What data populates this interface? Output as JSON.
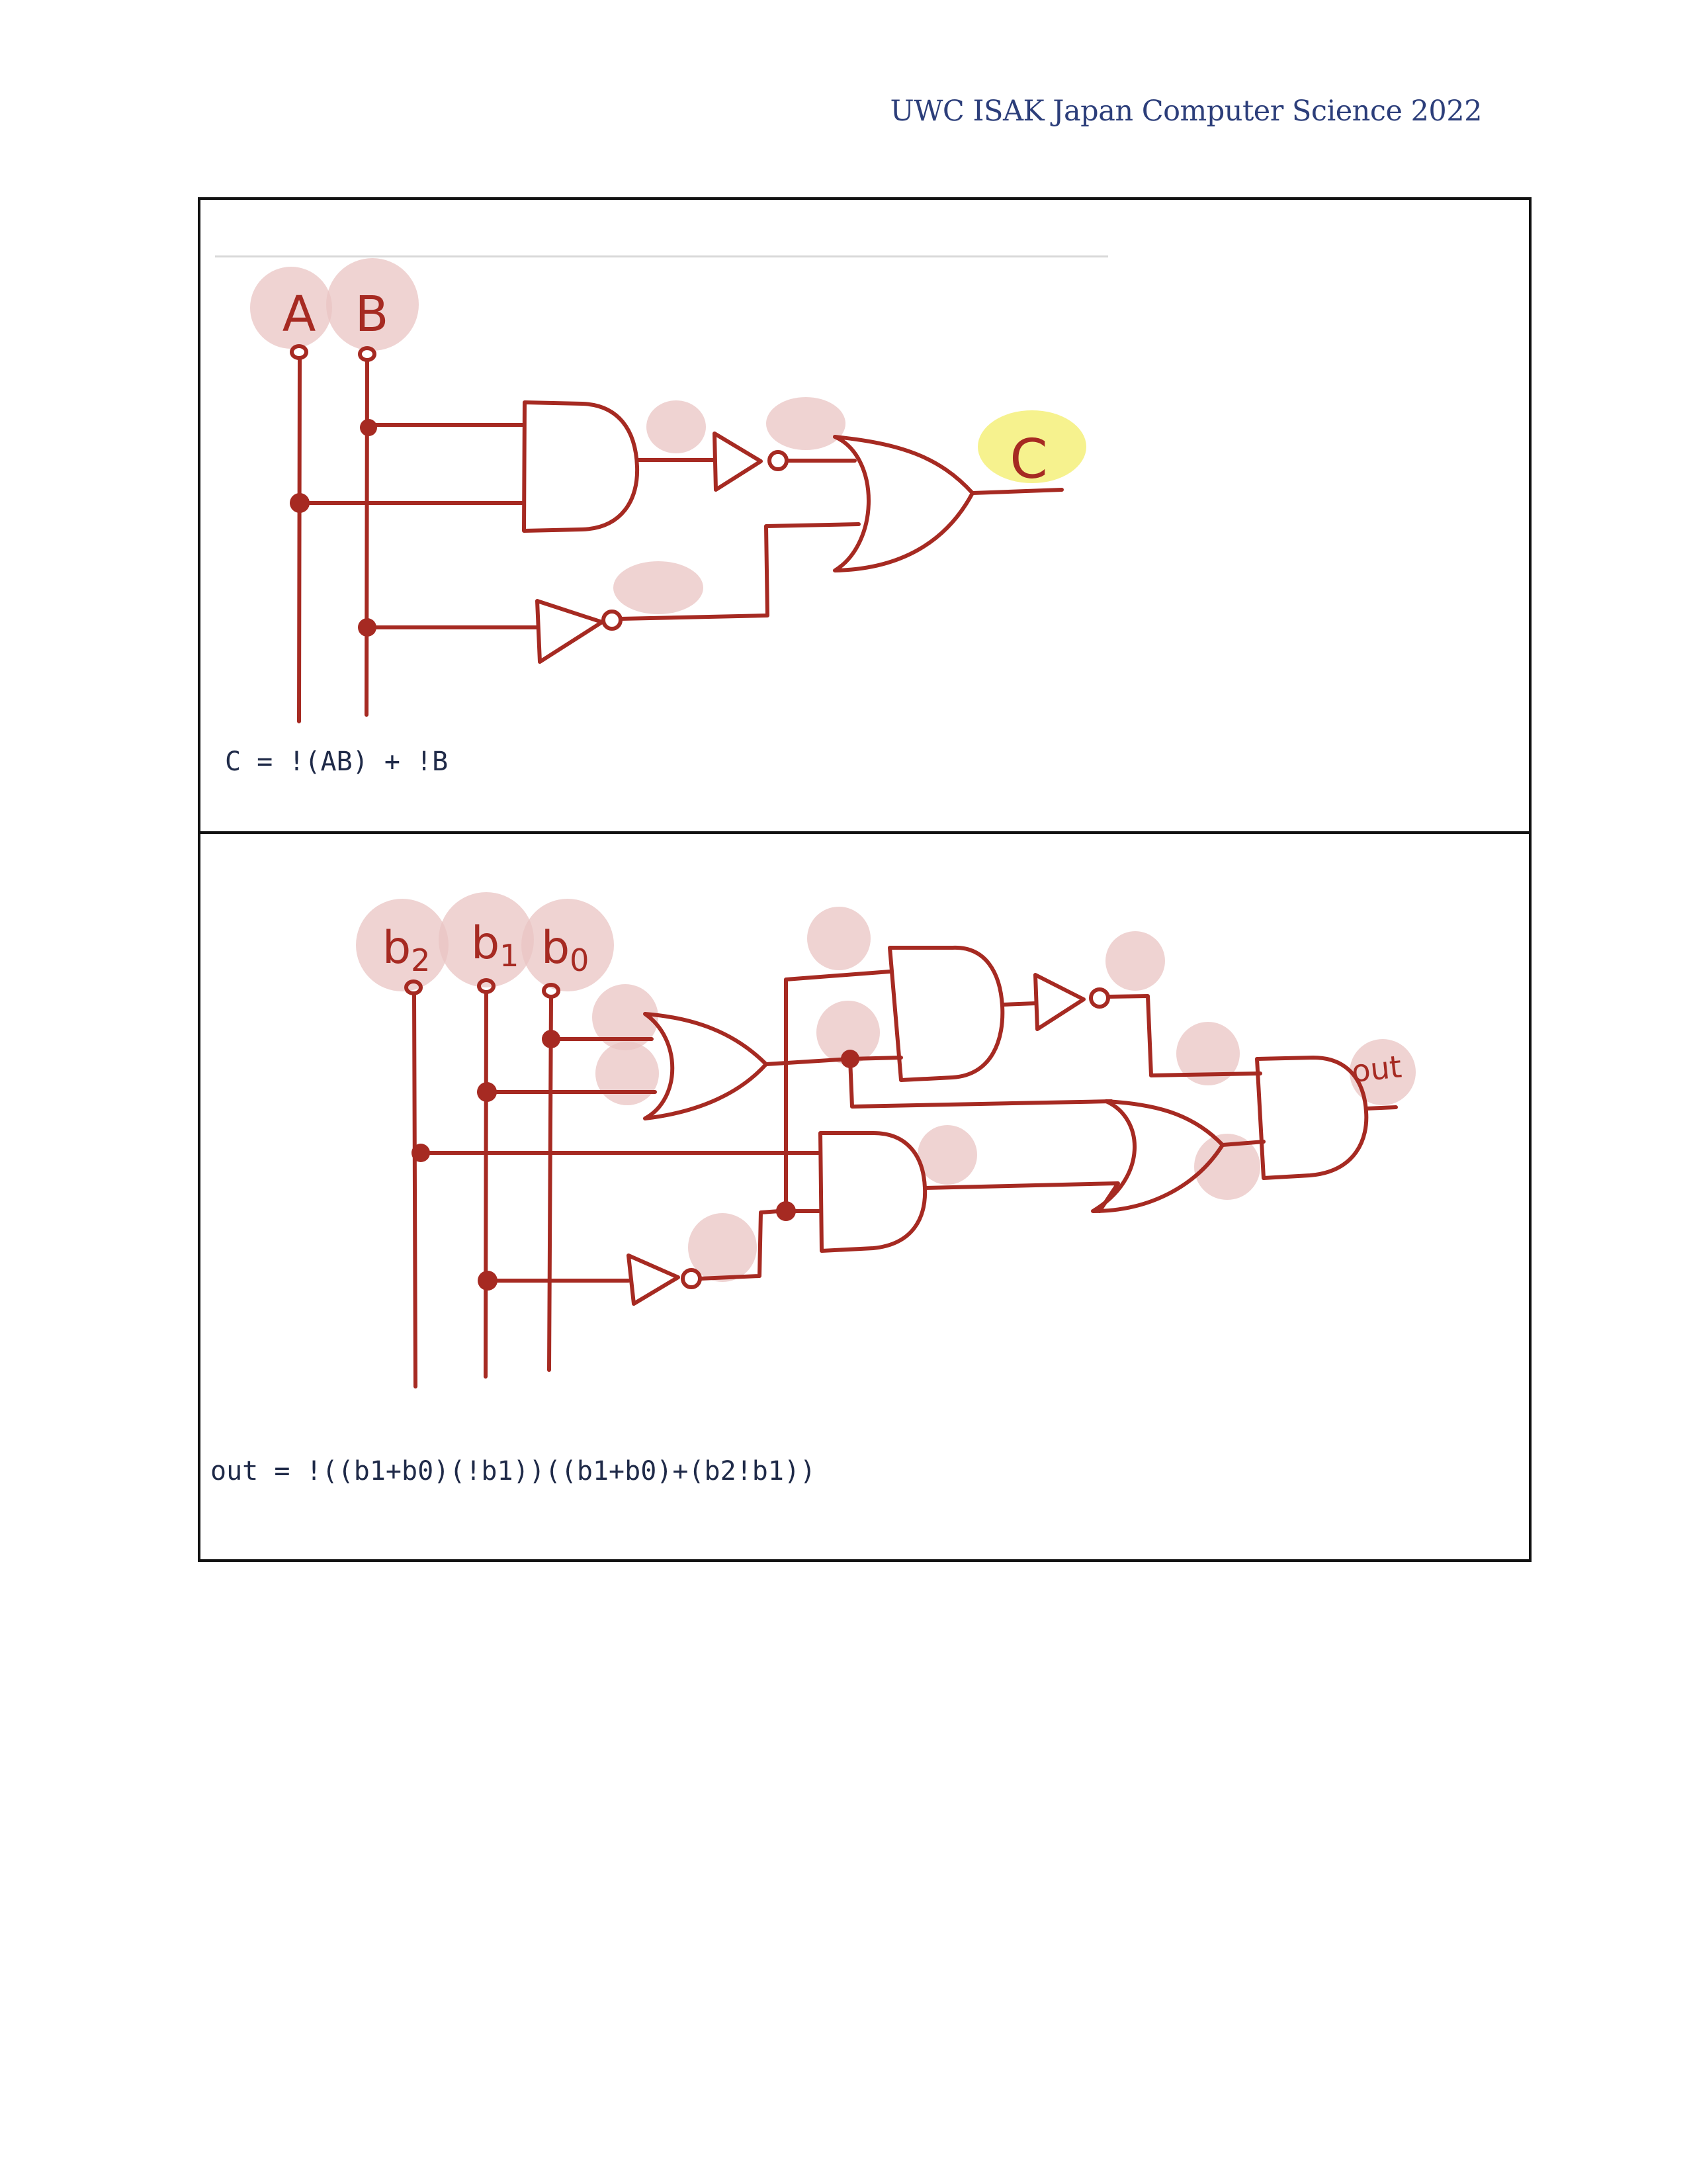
{
  "header": {
    "title": "UWC ISAK Japan Computer Science 2022"
  },
  "diagram1": {
    "inputs": [
      "A",
      "B"
    ],
    "output": "C",
    "equation": "C = !(AB) + !B"
  },
  "diagram2": {
    "inputs": {
      "b2": {
        "base": "b",
        "sub": "2"
      },
      "b1": {
        "base": "b",
        "sub": "1"
      },
      "b0": {
        "base": "b",
        "sub": "0"
      }
    },
    "output": "out",
    "equation": "out = !((b1+b0)(!b1))((b1+b0)+(b2!b1))"
  },
  "colors": {
    "ink": "#a62a22",
    "highlight": "#e9c4c3",
    "output_highlight": "#f5f07a",
    "header_text": "#2c3e7a"
  }
}
